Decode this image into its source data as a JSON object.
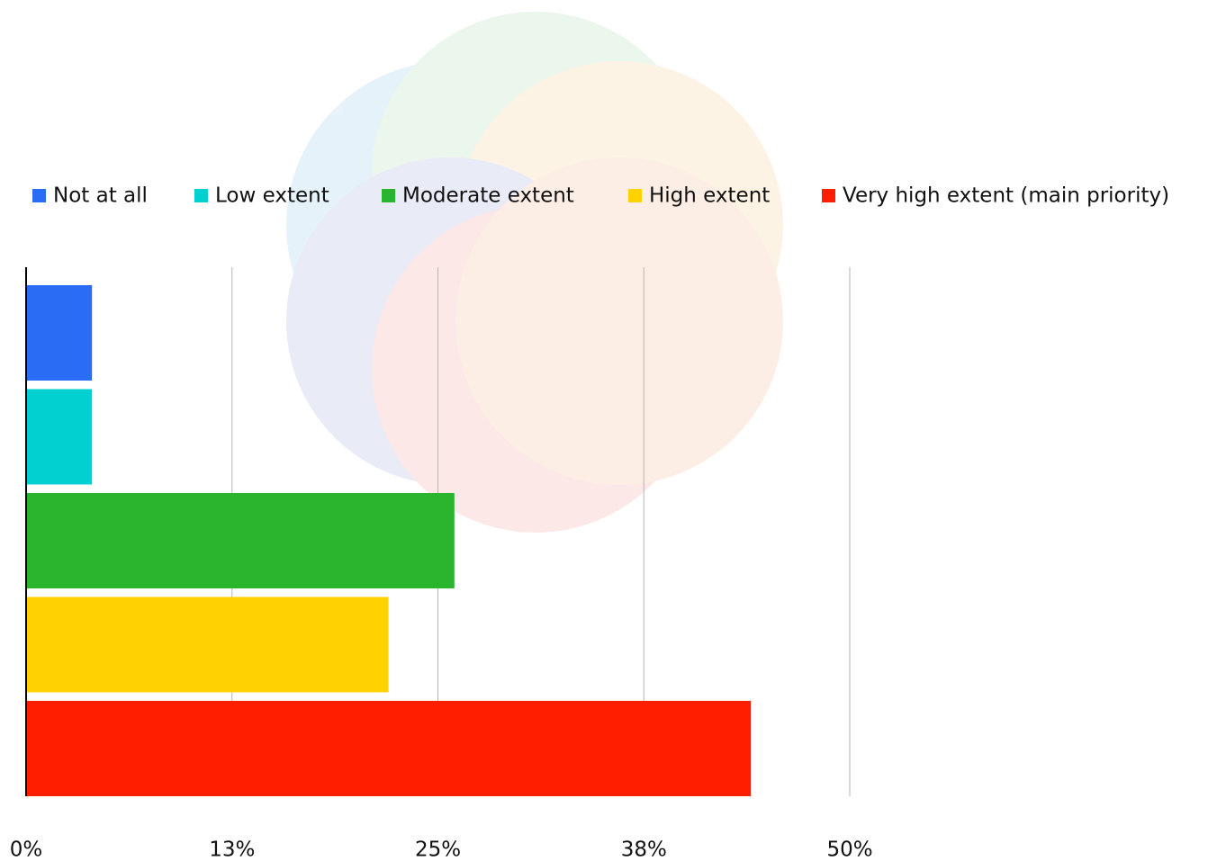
{
  "chart_data": {
    "type": "bar",
    "orientation": "horizontal",
    "series": [
      {
        "name": "Not at all",
        "color": "#2a6df4",
        "values": [
          4
        ]
      },
      {
        "name": "Low extent",
        "color": "#00d0d0",
        "values": [
          4
        ]
      },
      {
        "name": "Moderate extent",
        "color": "#2bb52f",
        "values": [
          26
        ]
      },
      {
        "name": "High extent",
        "color": "#ffd200",
        "values": [
          22
        ]
      },
      {
        "name": "Very high extent (main priority)",
        "color": "#ff1e00",
        "values": [
          44
        ]
      }
    ],
    "xlim": [
      0,
      50
    ],
    "xticks": [
      {
        "value": 0,
        "label": "0%"
      },
      {
        "value": 12.5,
        "label": "13%"
      },
      {
        "value": 25,
        "label": "25%"
      },
      {
        "value": 37.5,
        "label": "38%"
      },
      {
        "value": 50,
        "label": "50%"
      }
    ],
    "grid": true,
    "legend": "top"
  }
}
